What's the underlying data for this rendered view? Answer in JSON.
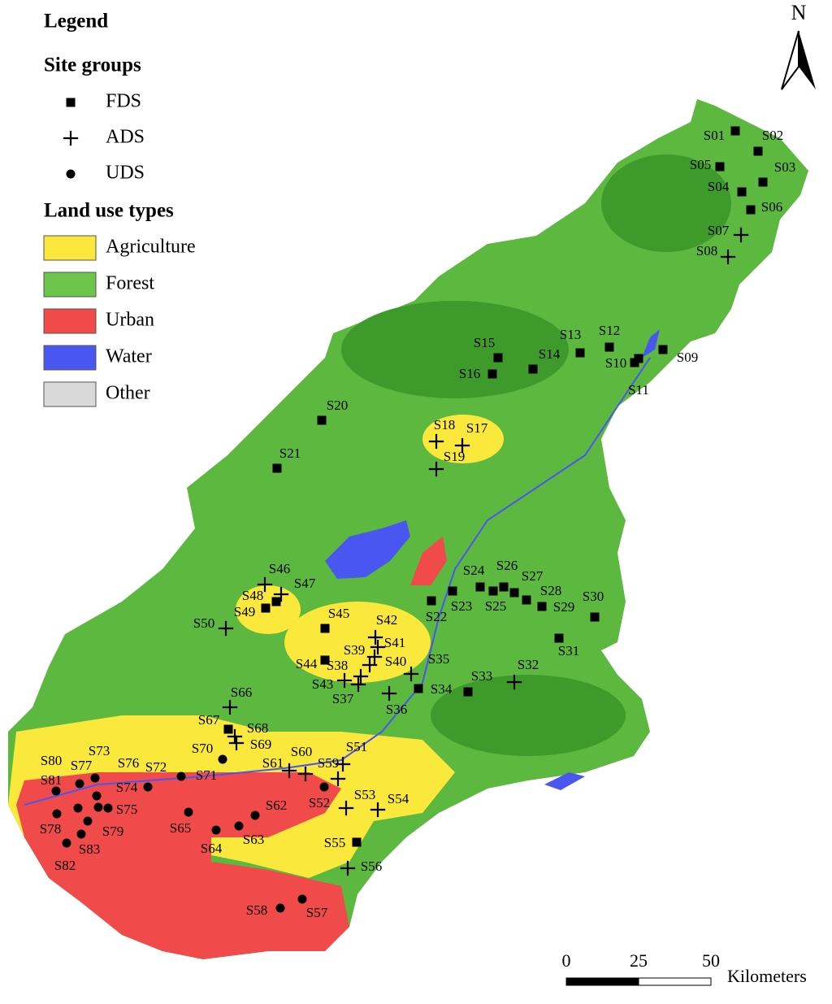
{
  "legend": {
    "title": "Legend",
    "site_groups": {
      "title": "Site groups",
      "items": [
        {
          "label": "FDS",
          "symbol": "square"
        },
        {
          "label": "ADS",
          "symbol": "plus"
        },
        {
          "label": "UDS",
          "symbol": "circle"
        }
      ]
    },
    "land_use": {
      "title": "Land use types",
      "items": [
        {
          "label": "Agriculture",
          "color": "#fbe83c"
        },
        {
          "label": "Forest",
          "color": "#6cc44a"
        },
        {
          "label": "Urban",
          "color": "#f04a4a"
        },
        {
          "label": "Water",
          "color": "#4a56f0"
        },
        {
          "label": "Other",
          "color": "#d9d9d9"
        }
      ]
    }
  },
  "north_arrow": "N",
  "scale_bar": {
    "ticks": [
      0,
      25,
      50
    ],
    "unit": "Kilometers"
  },
  "sites": [
    {
      "label": "S01",
      "group": "FDS"
    },
    {
      "label": "S02",
      "group": "FDS"
    },
    {
      "label": "S03",
      "group": "FDS"
    },
    {
      "label": "S04",
      "group": "FDS"
    },
    {
      "label": "S05",
      "group": "FDS"
    },
    {
      "label": "S06",
      "group": "FDS"
    },
    {
      "label": "S07",
      "group": "ADS"
    },
    {
      "label": "S08",
      "group": "ADS"
    },
    {
      "label": "S09",
      "group": "FDS"
    },
    {
      "label": "S10",
      "group": "FDS"
    },
    {
      "label": "S11",
      "group": "FDS"
    },
    {
      "label": "S12",
      "group": "FDS"
    },
    {
      "label": "S13",
      "group": "FDS"
    },
    {
      "label": "S14",
      "group": "FDS"
    },
    {
      "label": "S15",
      "group": "FDS"
    },
    {
      "label": "S16",
      "group": "FDS"
    },
    {
      "label": "S17",
      "group": "ADS"
    },
    {
      "label": "S18",
      "group": "ADS"
    },
    {
      "label": "S19",
      "group": "ADS"
    },
    {
      "label": "S20",
      "group": "FDS"
    },
    {
      "label": "S21",
      "group": "FDS"
    },
    {
      "label": "S22",
      "group": "FDS"
    },
    {
      "label": "S23",
      "group": "FDS"
    },
    {
      "label": "S24",
      "group": "FDS"
    },
    {
      "label": "S25",
      "group": "FDS"
    },
    {
      "label": "S26",
      "group": "FDS"
    },
    {
      "label": "S27",
      "group": "FDS"
    },
    {
      "label": "S28",
      "group": "FDS"
    },
    {
      "label": "S29",
      "group": "FDS"
    },
    {
      "label": "S30",
      "group": "FDS"
    },
    {
      "label": "S31",
      "group": "FDS"
    },
    {
      "label": "S32",
      "group": "ADS"
    },
    {
      "label": "S33",
      "group": "FDS"
    },
    {
      "label": "S34",
      "group": "FDS"
    },
    {
      "label": "S35",
      "group": "ADS"
    },
    {
      "label": "S36",
      "group": "ADS"
    },
    {
      "label": "S37",
      "group": "ADS"
    },
    {
      "label": "S38",
      "group": "ADS"
    },
    {
      "label": "S39",
      "group": "ADS"
    },
    {
      "label": "S40",
      "group": "ADS"
    },
    {
      "label": "S41",
      "group": "ADS"
    },
    {
      "label": "S42",
      "group": "ADS"
    },
    {
      "label": "S43",
      "group": "ADS"
    },
    {
      "label": "S44",
      "group": "FDS"
    },
    {
      "label": "S45",
      "group": "FDS"
    },
    {
      "label": "S46",
      "group": "ADS"
    },
    {
      "label": "S47",
      "group": "ADS"
    },
    {
      "label": "S48",
      "group": "FDS"
    },
    {
      "label": "S49",
      "group": "FDS"
    },
    {
      "label": "S50",
      "group": "ADS"
    },
    {
      "label": "S51",
      "group": "ADS"
    },
    {
      "label": "S52",
      "group": "UDS"
    },
    {
      "label": "S53",
      "group": "ADS"
    },
    {
      "label": "S54",
      "group": "ADS"
    },
    {
      "label": "S55",
      "group": "FDS"
    },
    {
      "label": "S56",
      "group": "ADS"
    },
    {
      "label": "S57",
      "group": "UDS"
    },
    {
      "label": "S58",
      "group": "UDS"
    },
    {
      "label": "S59",
      "group": "ADS"
    },
    {
      "label": "S60",
      "group": "ADS"
    },
    {
      "label": "S61",
      "group": "ADS"
    },
    {
      "label": "S62",
      "group": "UDS"
    },
    {
      "label": "S63",
      "group": "UDS"
    },
    {
      "label": "S64",
      "group": "UDS"
    },
    {
      "label": "S65",
      "group": "UDS"
    },
    {
      "label": "S66",
      "group": "ADS"
    },
    {
      "label": "S67",
      "group": "FDS"
    },
    {
      "label": "S68",
      "group": "ADS"
    },
    {
      "label": "S69",
      "group": "ADS"
    },
    {
      "label": "S70",
      "group": "UDS"
    },
    {
      "label": "S71",
      "group": "UDS"
    },
    {
      "label": "S72",
      "group": "UDS"
    },
    {
      "label": "S73",
      "group": "UDS"
    },
    {
      "label": "S74",
      "group": "UDS"
    },
    {
      "label": "S75",
      "group": "UDS"
    },
    {
      "label": "S76",
      "group": "UDS"
    },
    {
      "label": "S77",
      "group": "UDS"
    },
    {
      "label": "S78",
      "group": "UDS"
    },
    {
      "label": "S79",
      "group": "UDS"
    },
    {
      "label": "S80",
      "group": "UDS"
    },
    {
      "label": "S81",
      "group": "UDS"
    },
    {
      "label": "S82",
      "group": "UDS"
    },
    {
      "label": "S83",
      "group": "UDS"
    }
  ]
}
